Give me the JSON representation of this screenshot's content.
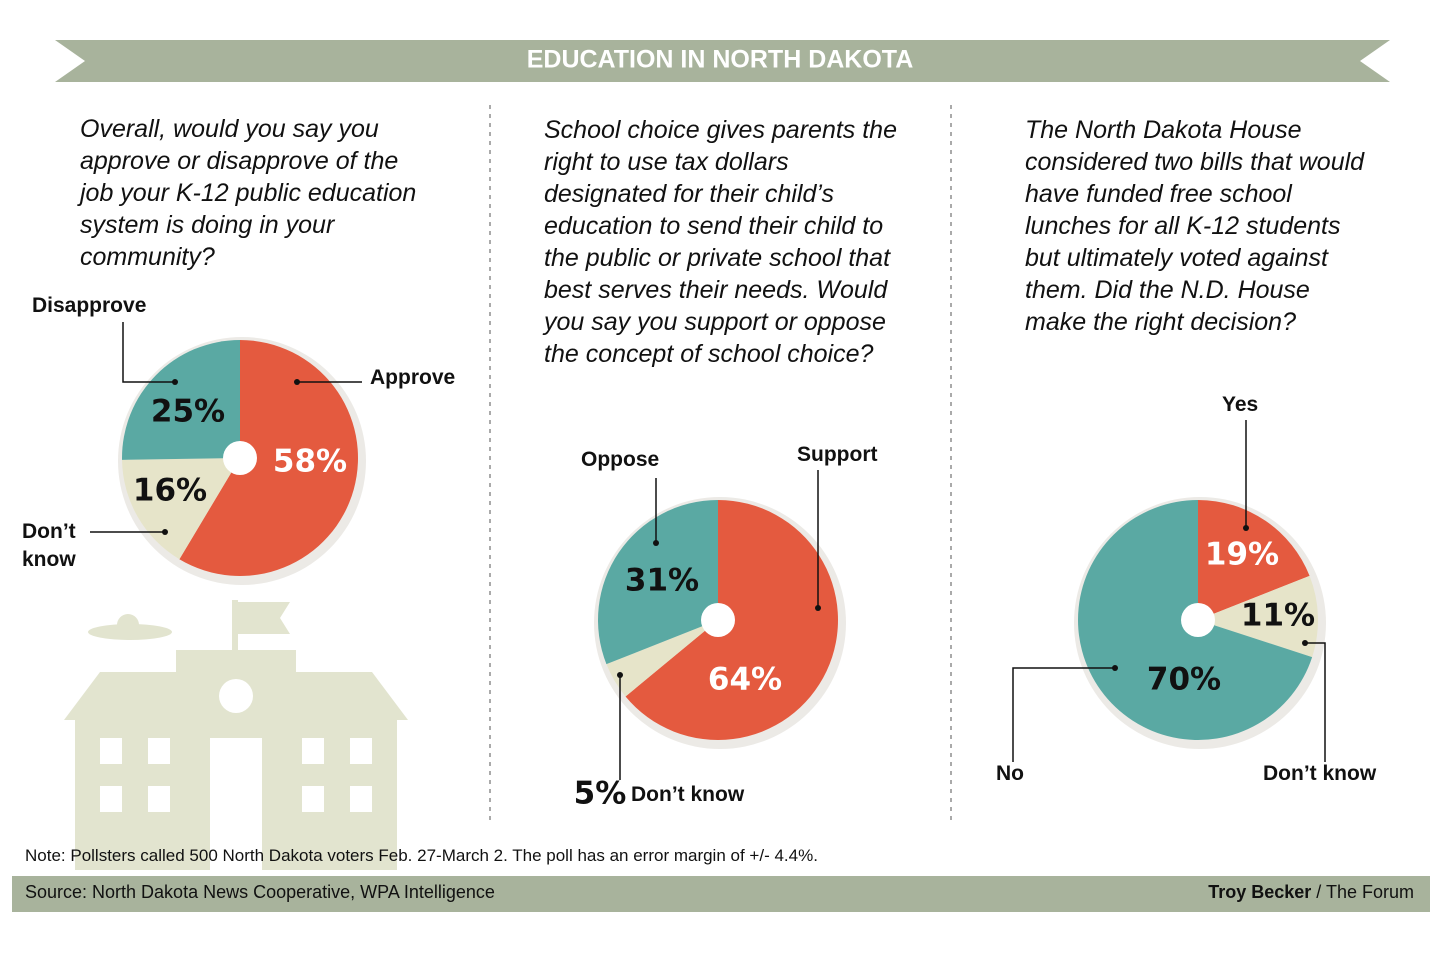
{
  "title": "EDUCATION IN NORTH DAKOTA",
  "note": "Note: Pollsters called 500 North Dakota voters Feb. 27-March 2. The poll has an error margin of +/- 4.4%.",
  "source": "Source: North Dakota News Cooperative, WPA Intelligence",
  "credit_name": "Troy Becker",
  "credit_outlet": "/ The Forum",
  "chart_data": [
    {
      "type": "pie",
      "title": "Overall, would you say you approve or disapprove of the job your K-12 public education system is doing in your community?",
      "categories": [
        "Approve",
        "Don’t know",
        "Disapprove"
      ],
      "values": [
        58,
        16,
        25
      ],
      "value_labels": [
        "58%",
        "16%",
        "25%"
      ],
      "colors": [
        "#e45a3f",
        "#e6e4c9",
        "#5aa9a3"
      ]
    },
    {
      "type": "pie",
      "title": "School choice gives parents the right to use tax dollars designated for their child’s education to send their child to the public or private school that best serves their needs. Would you say you support or oppose the concept of school choice?",
      "categories": [
        "Support",
        "Don’t know",
        "Oppose"
      ],
      "values": [
        64,
        5,
        31
      ],
      "value_labels": [
        "64%",
        "5%",
        "31%"
      ],
      "colors": [
        "#e45a3f",
        "#e6e4c9",
        "#5aa9a3"
      ]
    },
    {
      "type": "pie",
      "title": "The North Dakota House considered two bills that would have funded free school lunches for all K-12 students but ultimately voted against them. Did the N.D. House make the right decision?",
      "categories": [
        "Yes",
        "Don’t know",
        "No"
      ],
      "values": [
        19,
        11,
        70
      ],
      "value_labels": [
        "19%",
        "11%",
        "70%"
      ],
      "colors": [
        "#e45a3f",
        "#e6e4c9",
        "#5aa9a3"
      ]
    }
  ]
}
